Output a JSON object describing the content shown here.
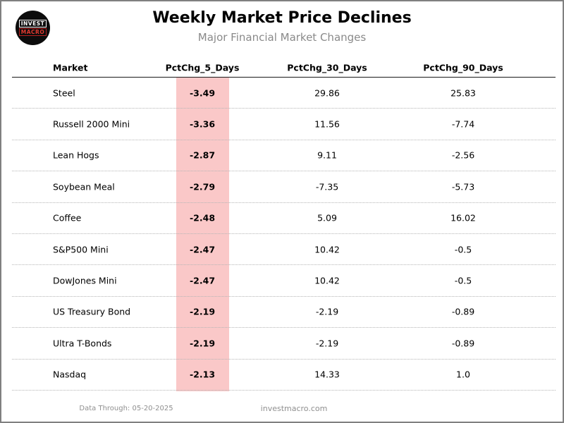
{
  "logo": {
    "line1": "INVEST",
    "line2": "MACRO"
  },
  "header": {
    "title": "Weekly Market Price Declines",
    "subtitle": "Major Financial Market Changes"
  },
  "chart_data": {
    "type": "table",
    "title": "Weekly Market Price Declines",
    "subtitle": "Major Financial Market Changes",
    "columns": [
      "Market",
      "PctChg_5_Days",
      "PctChg_30_Days",
      "PctChg_90_Days"
    ],
    "rows": [
      [
        "Steel",
        "-3.49",
        "29.86",
        "25.83"
      ],
      [
        "Russell 2000 Mini",
        "-3.36",
        "11.56",
        "-7.74"
      ],
      [
        "Lean Hogs",
        "-2.87",
        "9.11",
        "-2.56"
      ],
      [
        "Soybean Meal",
        "-2.79",
        "-7.35",
        "-5.73"
      ],
      [
        "Coffee",
        "-2.48",
        "5.09",
        "16.02"
      ],
      [
        "S&P500 Mini",
        "-2.47",
        "10.42",
        "-0.5"
      ],
      [
        "DowJones Mini",
        "-2.47",
        "10.42",
        "-0.5"
      ],
      [
        "US Treasury Bond",
        "-2.19",
        "-2.19",
        "-0.89"
      ],
      [
        "Ultra T-Bonds",
        "-2.19",
        "-2.19",
        "-0.89"
      ],
      [
        "Nasdaq",
        "-2.13",
        "14.33",
        "1.0"
      ]
    ],
    "highlighted_column": "PctChg_5_Days",
    "highlight_color": "#fac8c8",
    "legend": "none",
    "grid": "dotted row separators"
  },
  "footer": {
    "data_through": "Data Through: 05-20-2025",
    "website": "investmacro.com"
  },
  "colors": {
    "highlight_pink": "#fac8c8",
    "logo_red": "#e03a30",
    "subtitle_gray": "#8a8a8a",
    "frame_border_gray": "#808080"
  }
}
